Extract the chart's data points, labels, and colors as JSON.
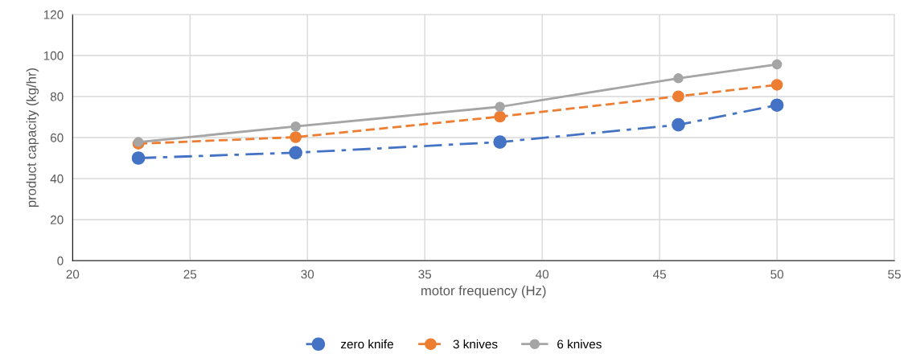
{
  "chart_data": {
    "type": "line",
    "xlabel": "motor frequency (Hz)",
    "ylabel": "product capacity (kg/hr)",
    "x": [
      22.8,
      29.5,
      38.2,
      45.8,
      50
    ],
    "series": [
      {
        "name": "zero knife",
        "color": "#4472c4",
        "line_style": "dashdot",
        "values": [
          50,
          52.6,
          57.8,
          66.2,
          75.8
        ]
      },
      {
        "name": "3 knives",
        "color": "#ed7d31",
        "line_style": "dashed",
        "values": [
          57,
          60.2,
          70.2,
          80.1,
          85.7
        ]
      },
      {
        "name": "6 knives",
        "color": "#a5a5a5",
        "line_style": "solid",
        "values": [
          57.8,
          65.4,
          75,
          88.9,
          95.7
        ]
      }
    ],
    "xlim": [
      20,
      55
    ],
    "xticks": [
      20,
      25,
      30,
      35,
      40,
      45,
      50,
      55
    ],
    "ylim": [
      0,
      120
    ],
    "yticks": [
      0,
      20,
      40,
      60,
      80,
      100,
      120
    ],
    "grid": true,
    "legend": "bottom",
    "marker": "circle"
  }
}
